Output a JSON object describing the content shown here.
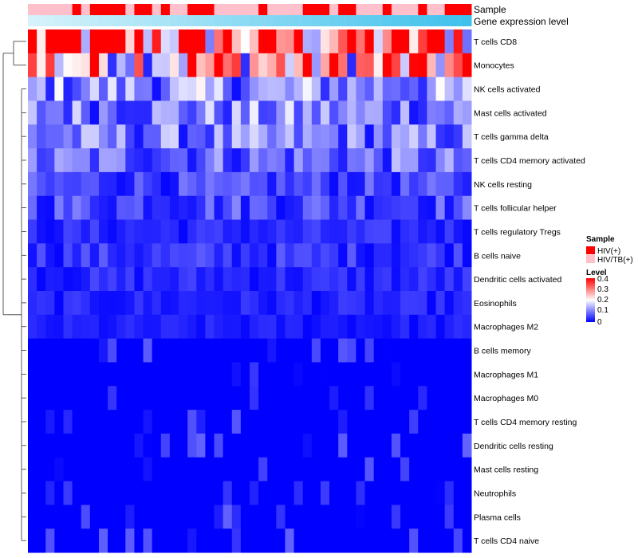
{
  "chart_data": {
    "type": "heatmap",
    "title": "",
    "annotation_rows": [
      "Sample",
      "Gene expression level"
    ],
    "sample_groups": {
      "title": "Sample",
      "levels": [
        "HIV(+)",
        "HIV/TB(+)"
      ],
      "colors": [
        "#ff0000",
        "#ffc0cb"
      ],
      "assignment": [
        1,
        1,
        1,
        1,
        1,
        0,
        1,
        0,
        0,
        0,
        0,
        1,
        0,
        0,
        1,
        0,
        1,
        1,
        0,
        0,
        0,
        1,
        1,
        1,
        1,
        1,
        0,
        1,
        1,
        1,
        1,
        0,
        0,
        0,
        1,
        0,
        0,
        1,
        1,
        1,
        0,
        1,
        1,
        1,
        0,
        1,
        1,
        0,
        0,
        0
      ]
    },
    "gene_expression_level": {
      "label": "Gene expression level",
      "min_color": "#d6f2fb",
      "max_color": "#3fc1ec"
    },
    "level_legend": {
      "title": "Level",
      "ticks": [
        0.4,
        0.3,
        0.2,
        0.1,
        0
      ],
      "range": [
        0,
        0.4
      ],
      "colors": [
        "#0000ff",
        "#ffffff",
        "#ff0000"
      ]
    },
    "rows": [
      "T cells CD8",
      "Monocytes",
      "NK cells activated",
      "Mast cells activated",
      "T cells gamma delta",
      "T cells CD4 memory activated",
      "NK cells resting",
      "T cells follicular helper",
      "T cells regulatory  Tregs",
      "B cells naive",
      "Dendritic cells activated",
      "Eosinophils",
      "Macrophages M2",
      "B cells memory",
      "Macrophages M1",
      "Macrophages M0",
      "T cells CD4 memory resting",
      "Dendritic cells resting",
      "Mast cells resting",
      "Neutrophils",
      "Plasma cells",
      "T cells CD4 naive"
    ],
    "row_mean_levels": [
      0.33,
      0.26,
      0.11,
      0.1,
      0.09,
      0.08,
      0.05,
      0.06,
      0.03,
      0.04,
      0.03,
      0.025,
      0.02,
      0.015,
      0.01,
      0.01,
      0.005,
      0.005,
      0.003,
      0.003,
      0.01,
      0.005
    ],
    "n_samples": 50,
    "row_dendrogram": true
  }
}
